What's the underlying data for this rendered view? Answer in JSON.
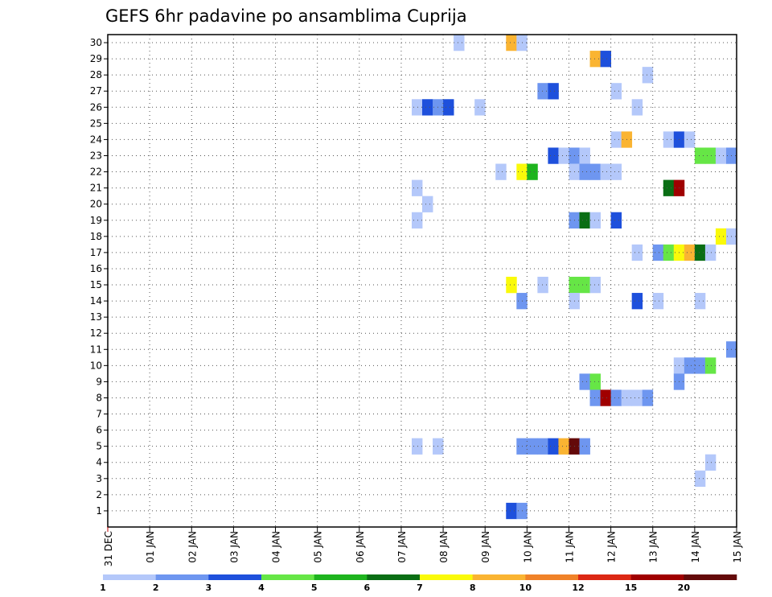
{
  "chart_data": {
    "type": "heatmap",
    "title": "GEFS 6hr padavine po ansamblima Cuprija",
    "xlabel": "",
    "ylabel": "",
    "ylim": [
      0,
      30
    ],
    "grid": true,
    "y_ticks": [
      "1",
      "2",
      "3",
      "4",
      "5",
      "6",
      "7",
      "8",
      "9",
      "10",
      "11",
      "12",
      "13",
      "14",
      "15",
      "16",
      "17",
      "18",
      "19",
      "20",
      "21",
      "22",
      "23",
      "24",
      "25",
      "26",
      "27",
      "28",
      "29",
      "30"
    ],
    "x_ticks": [
      "31 DEC",
      "01 JAN",
      "02 JAN",
      "03 JAN",
      "04 JAN",
      "05 JAN",
      "06 JAN",
      "07 JAN",
      "08 JAN",
      "09 JAN",
      "10 JAN",
      "11 JAN",
      "12 JAN",
      "13 JAN",
      "14 JAN",
      "15 JAN"
    ],
    "x_tick_days": [
      0,
      1,
      2,
      3,
      4,
      5,
      6,
      7,
      8,
      9,
      10,
      11,
      12,
      13,
      14,
      15
    ],
    "x_unit": "days from 31 DEC 00Z, 6-hourly steps",
    "colorbar": {
      "labels": [
        "1",
        "2",
        "3",
        "4",
        "5",
        "6",
        "7",
        "8",
        "10",
        "12",
        "15",
        "20"
      ],
      "colors": [
        "#b4c8fa",
        "#6e96f0",
        "#1e50dc",
        "#66e646",
        "#1eb41e",
        "#0a6e14",
        "#fafa0a",
        "#fab432",
        "#f08228",
        "#dc2814",
        "#a00000",
        "#640a0a"
      ]
    },
    "cells": [
      {
        "m": 30,
        "t": 8.25,
        "c": "#b4c8fa"
      },
      {
        "m": 30,
        "t": 9.5,
        "c": "#fab432"
      },
      {
        "m": 30,
        "t": 9.75,
        "c": "#b4c8fa"
      },
      {
        "m": 29,
        "t": 11.5,
        "c": "#fab432"
      },
      {
        "m": 29,
        "t": 11.75,
        "c": "#1e50dc"
      },
      {
        "m": 28,
        "t": 12.75,
        "c": "#b4c8fa"
      },
      {
        "m": 27,
        "t": 10.25,
        "c": "#6e96f0"
      },
      {
        "m": 27,
        "t": 10.5,
        "c": "#1e50dc"
      },
      {
        "m": 27,
        "t": 12.0,
        "c": "#b4c8fa"
      },
      {
        "m": 26,
        "t": 7.25,
        "c": "#b4c8fa"
      },
      {
        "m": 26,
        "t": 7.5,
        "c": "#1e50dc"
      },
      {
        "m": 26,
        "t": 7.75,
        "c": "#6e96f0"
      },
      {
        "m": 26,
        "t": 8.0,
        "c": "#1e50dc"
      },
      {
        "m": 26,
        "t": 8.75,
        "c": "#b4c8fa"
      },
      {
        "m": 26,
        "t": 12.5,
        "c": "#b4c8fa"
      },
      {
        "m": 24,
        "t": 12.0,
        "c": "#b4c8fa"
      },
      {
        "m": 24,
        "t": 12.25,
        "c": "#fab432"
      },
      {
        "m": 24,
        "t": 13.25,
        "c": "#b4c8fa"
      },
      {
        "m": 24,
        "t": 13.5,
        "c": "#1e50dc"
      },
      {
        "m": 24,
        "t": 13.75,
        "c": "#b4c8fa"
      },
      {
        "m": 23,
        "t": 10.5,
        "c": "#1e50dc"
      },
      {
        "m": 23,
        "t": 10.75,
        "c": "#b4c8fa"
      },
      {
        "m": 23,
        "t": 11.0,
        "c": "#6e96f0"
      },
      {
        "m": 23,
        "t": 11.25,
        "c": "#b4c8fa"
      },
      {
        "m": 23,
        "t": 14.0,
        "c": "#66e646"
      },
      {
        "m": 23,
        "t": 14.25,
        "c": "#66e646"
      },
      {
        "m": 23,
        "t": 14.5,
        "c": "#b4c8fa"
      },
      {
        "m": 23,
        "t": 14.75,
        "c": "#6e96f0"
      },
      {
        "m": 22,
        "t": 9.25,
        "c": "#b4c8fa"
      },
      {
        "m": 22,
        "t": 9.75,
        "c": "#fafa0a"
      },
      {
        "m": 22,
        "t": 10.0,
        "c": "#1eb41e"
      },
      {
        "m": 22,
        "t": 11.0,
        "c": "#b4c8fa"
      },
      {
        "m": 22,
        "t": 11.25,
        "c": "#6e96f0"
      },
      {
        "m": 22,
        "t": 11.5,
        "c": "#6e96f0"
      },
      {
        "m": 22,
        "t": 11.75,
        "c": "#b4c8fa"
      },
      {
        "m": 22,
        "t": 12.0,
        "c": "#b4c8fa"
      },
      {
        "m": 21,
        "t": 7.25,
        "c": "#b4c8fa"
      },
      {
        "m": 21,
        "t": 13.25,
        "c": "#0a6e14"
      },
      {
        "m": 21,
        "t": 13.5,
        "c": "#a00000"
      },
      {
        "m": 20,
        "t": 7.5,
        "c": "#b4c8fa"
      },
      {
        "m": 19,
        "t": 7.25,
        "c": "#b4c8fa"
      },
      {
        "m": 19,
        "t": 11.0,
        "c": "#6e96f0"
      },
      {
        "m": 19,
        "t": 11.25,
        "c": "#0a6e14"
      },
      {
        "m": 19,
        "t": 11.5,
        "c": "#b4c8fa"
      },
      {
        "m": 19,
        "t": 12.0,
        "c": "#1e50dc"
      },
      {
        "m": 18,
        "t": 14.5,
        "c": "#fafa0a"
      },
      {
        "m": 18,
        "t": 14.75,
        "c": "#b4c8fa"
      },
      {
        "m": 17,
        "t": 12.5,
        "c": "#b4c8fa"
      },
      {
        "m": 17,
        "t": 13.0,
        "c": "#6e96f0"
      },
      {
        "m": 17,
        "t": 13.25,
        "c": "#66e646"
      },
      {
        "m": 17,
        "t": 13.5,
        "c": "#fafa0a"
      },
      {
        "m": 17,
        "t": 13.75,
        "c": "#fab432"
      },
      {
        "m": 17,
        "t": 14.0,
        "c": "#0a6e14"
      },
      {
        "m": 17,
        "t": 14.25,
        "c": "#b4c8fa"
      },
      {
        "m": 15,
        "t": 9.5,
        "c": "#fafa0a"
      },
      {
        "m": 15,
        "t": 10.25,
        "c": "#b4c8fa"
      },
      {
        "m": 15,
        "t": 11.0,
        "c": "#66e646"
      },
      {
        "m": 15,
        "t": 11.25,
        "c": "#66e646"
      },
      {
        "m": 15,
        "t": 11.5,
        "c": "#b4c8fa"
      },
      {
        "m": 14,
        "t": 9.75,
        "c": "#6e96f0"
      },
      {
        "m": 14,
        "t": 11.0,
        "c": "#b4c8fa"
      },
      {
        "m": 14,
        "t": 12.5,
        "c": "#1e50dc"
      },
      {
        "m": 14,
        "t": 13.0,
        "c": "#b4c8fa"
      },
      {
        "m": 14,
        "t": 14.0,
        "c": "#b4c8fa"
      },
      {
        "m": 11,
        "t": 14.75,
        "c": "#6e96f0"
      },
      {
        "m": 10,
        "t": 13.5,
        "c": "#b4c8fa"
      },
      {
        "m": 10,
        "t": 13.75,
        "c": "#6e96f0"
      },
      {
        "m": 10,
        "t": 14.0,
        "c": "#6e96f0"
      },
      {
        "m": 10,
        "t": 14.25,
        "c": "#66e646"
      },
      {
        "m": 9,
        "t": 11.25,
        "c": "#6e96f0"
      },
      {
        "m": 9,
        "t": 11.5,
        "c": "#66e646"
      },
      {
        "m": 9,
        "t": 13.5,
        "c": "#6e96f0"
      },
      {
        "m": 8,
        "t": 11.5,
        "c": "#6e96f0"
      },
      {
        "m": 8,
        "t": 11.75,
        "c": "#a00000"
      },
      {
        "m": 8,
        "t": 12.0,
        "c": "#6e96f0"
      },
      {
        "m": 8,
        "t": 12.25,
        "c": "#b4c8fa"
      },
      {
        "m": 8,
        "t": 12.5,
        "c": "#b4c8fa"
      },
      {
        "m": 8,
        "t": 12.75,
        "c": "#6e96f0"
      },
      {
        "m": 5,
        "t": 7.25,
        "c": "#b4c8fa"
      },
      {
        "m": 5,
        "t": 7.75,
        "c": "#b4c8fa"
      },
      {
        "m": 5,
        "t": 9.75,
        "c": "#6e96f0"
      },
      {
        "m": 5,
        "t": 10.0,
        "c": "#6e96f0"
      },
      {
        "m": 5,
        "t": 10.25,
        "c": "#6e96f0"
      },
      {
        "m": 5,
        "t": 10.5,
        "c": "#1e50dc"
      },
      {
        "m": 5,
        "t": 10.75,
        "c": "#fab432"
      },
      {
        "m": 5,
        "t": 11.0,
        "c": "#640a0a"
      },
      {
        "m": 5,
        "t": 11.25,
        "c": "#6e96f0"
      },
      {
        "m": 4,
        "t": 14.25,
        "c": "#b4c8fa"
      },
      {
        "m": 3,
        "t": 14.0,
        "c": "#b4c8fa"
      },
      {
        "m": 1,
        "t": 9.5,
        "c": "#1e50dc"
      },
      {
        "m": 1,
        "t": 9.75,
        "c": "#6e96f0"
      }
    ]
  }
}
